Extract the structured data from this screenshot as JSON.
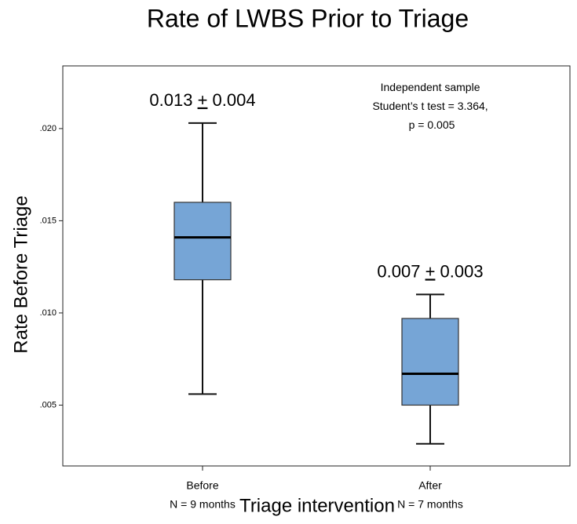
{
  "chart_data": {
    "type": "boxplot",
    "title": "Rate of LWBS Prior to Triage",
    "xlabel": "Triage intervention",
    "ylabel": "Rate Before Triage",
    "ylim": [
      0.0017,
      0.0234
    ],
    "yticks": [
      0.005,
      0.01,
      0.015,
      0.02
    ],
    "ytick_labels": [
      ".005",
      ".010",
      ".015",
      ".020"
    ],
    "grid": false,
    "box_color": "#76A5D6",
    "box_edge_color": "#333333",
    "groups": [
      {
        "name": "Before",
        "n_label": "N = 9 months",
        "min": 0.0056,
        "q1": 0.0118,
        "median": 0.0141,
        "q3": 0.016,
        "max": 0.0203,
        "stat_label": "0.013 + 0.004"
      },
      {
        "name": "After",
        "n_label": "N = 7 months",
        "min": 0.0029,
        "q1": 0.005,
        "median": 0.0067,
        "q3": 0.0097,
        "max": 0.011,
        "stat_label": "0.007 + 0.003"
      }
    ],
    "annotation": [
      "Independent sample",
      "Student’s t test = 3.364,",
      "p = 0.005"
    ]
  }
}
